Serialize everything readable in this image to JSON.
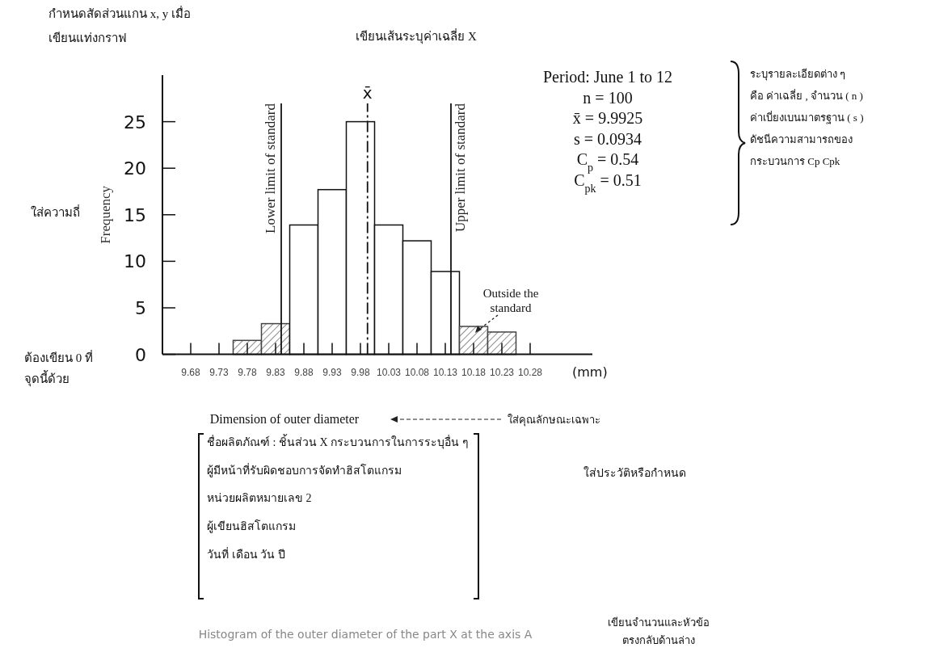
{
  "chart_data": {
    "type": "bar",
    "title": "Histogram of the outer diameter of the part X at the axis A",
    "xlabel": "Dimension of outer diameter",
    "ylabel": "Frequency",
    "x": [
      9.78,
      9.83,
      9.88,
      9.93,
      9.98,
      10.03,
      10.08,
      10.13,
      10.18,
      10.23
    ],
    "values": [
      1.5,
      3.3,
      13.9,
      17.7,
      25,
      13.9,
      12.2,
      8.9,
      3,
      2.4
    ],
    "colors": [
      "#444444",
      "#444444",
      "#111111",
      "#111111",
      "#111111",
      "#111111",
      "#111111",
      "#111111",
      "#444444",
      "#444444"
    ],
    "xlim": [
      9.63,
      10.39
    ],
    "xticks": [
      9.68,
      9.73,
      9.78,
      9.83,
      9.88,
      9.93,
      9.98,
      10.03,
      10.08,
      10.13,
      10.18,
      10.23,
      10.28
    ],
    "ylim": [
      0,
      30
    ],
    "yticks": [
      0,
      5,
      10,
      15,
      20,
      25
    ],
    "grid": false,
    "ref_lines": [
      {
        "axis": "x",
        "value": 9.84,
        "label": "Lower limit of standard"
      },
      {
        "axis": "x",
        "value": 9.9925,
        "label": "x̄",
        "line_style": "dashed"
      },
      {
        "axis": "x",
        "value": 10.14,
        "label": "Upper limit of standard"
      }
    ],
    "annotations": [
      "กำหนดสัดส่วนแกน x, y เมื่อ\nเขียนแท่งกราฟ",
      "เขียนเส้นระบุค่าเฉลี่ย X",
      "Period: June 1 to 12\nn = 100\nx̄ = 9.9925\ns = 0.0934\nC$_{p}$ = 0.54\nC$_{pk}$ = 0.51",
      "ระบุรายละเอียดต่าง ๆ\nคือ ค่าเฉลี่ย , จำนวน ( n )\nค่าเบี่ยงเบนมาตรฐาน ( s )\nดัชนีความสามารถของ\nกระบวนการ     Cp Cpk",
      "ใส่ความถี่",
      "ต้องเขียน 0 ที่\nจุดนี้ด้วย",
      {
        "text": "Outside the\nstandard",
        "x": 10.18,
        "y": 3
      },
      "(mm)",
      "ใส่คุณลักษณะเฉพาะ",
      "ชื่อผลิตภัณฑ์ : ชิ้นส่วน X  กระบวนการในการระบุอื่น ๆ\nผู้มีหน้าที่รับผิดชอบการจัดทำฮิสโตแกรม\nหน่วยผลิตหมายเลข 2\nผู้เขียนฮิสโตแกรม\nวันที่ เดือน วัน ปี",
      "ใส่ประวัติหรือกำหนด",
      "เขียนจำนวนและหัวข้อ\nตรงกลับด้านล่าง"
    ]
  }
}
